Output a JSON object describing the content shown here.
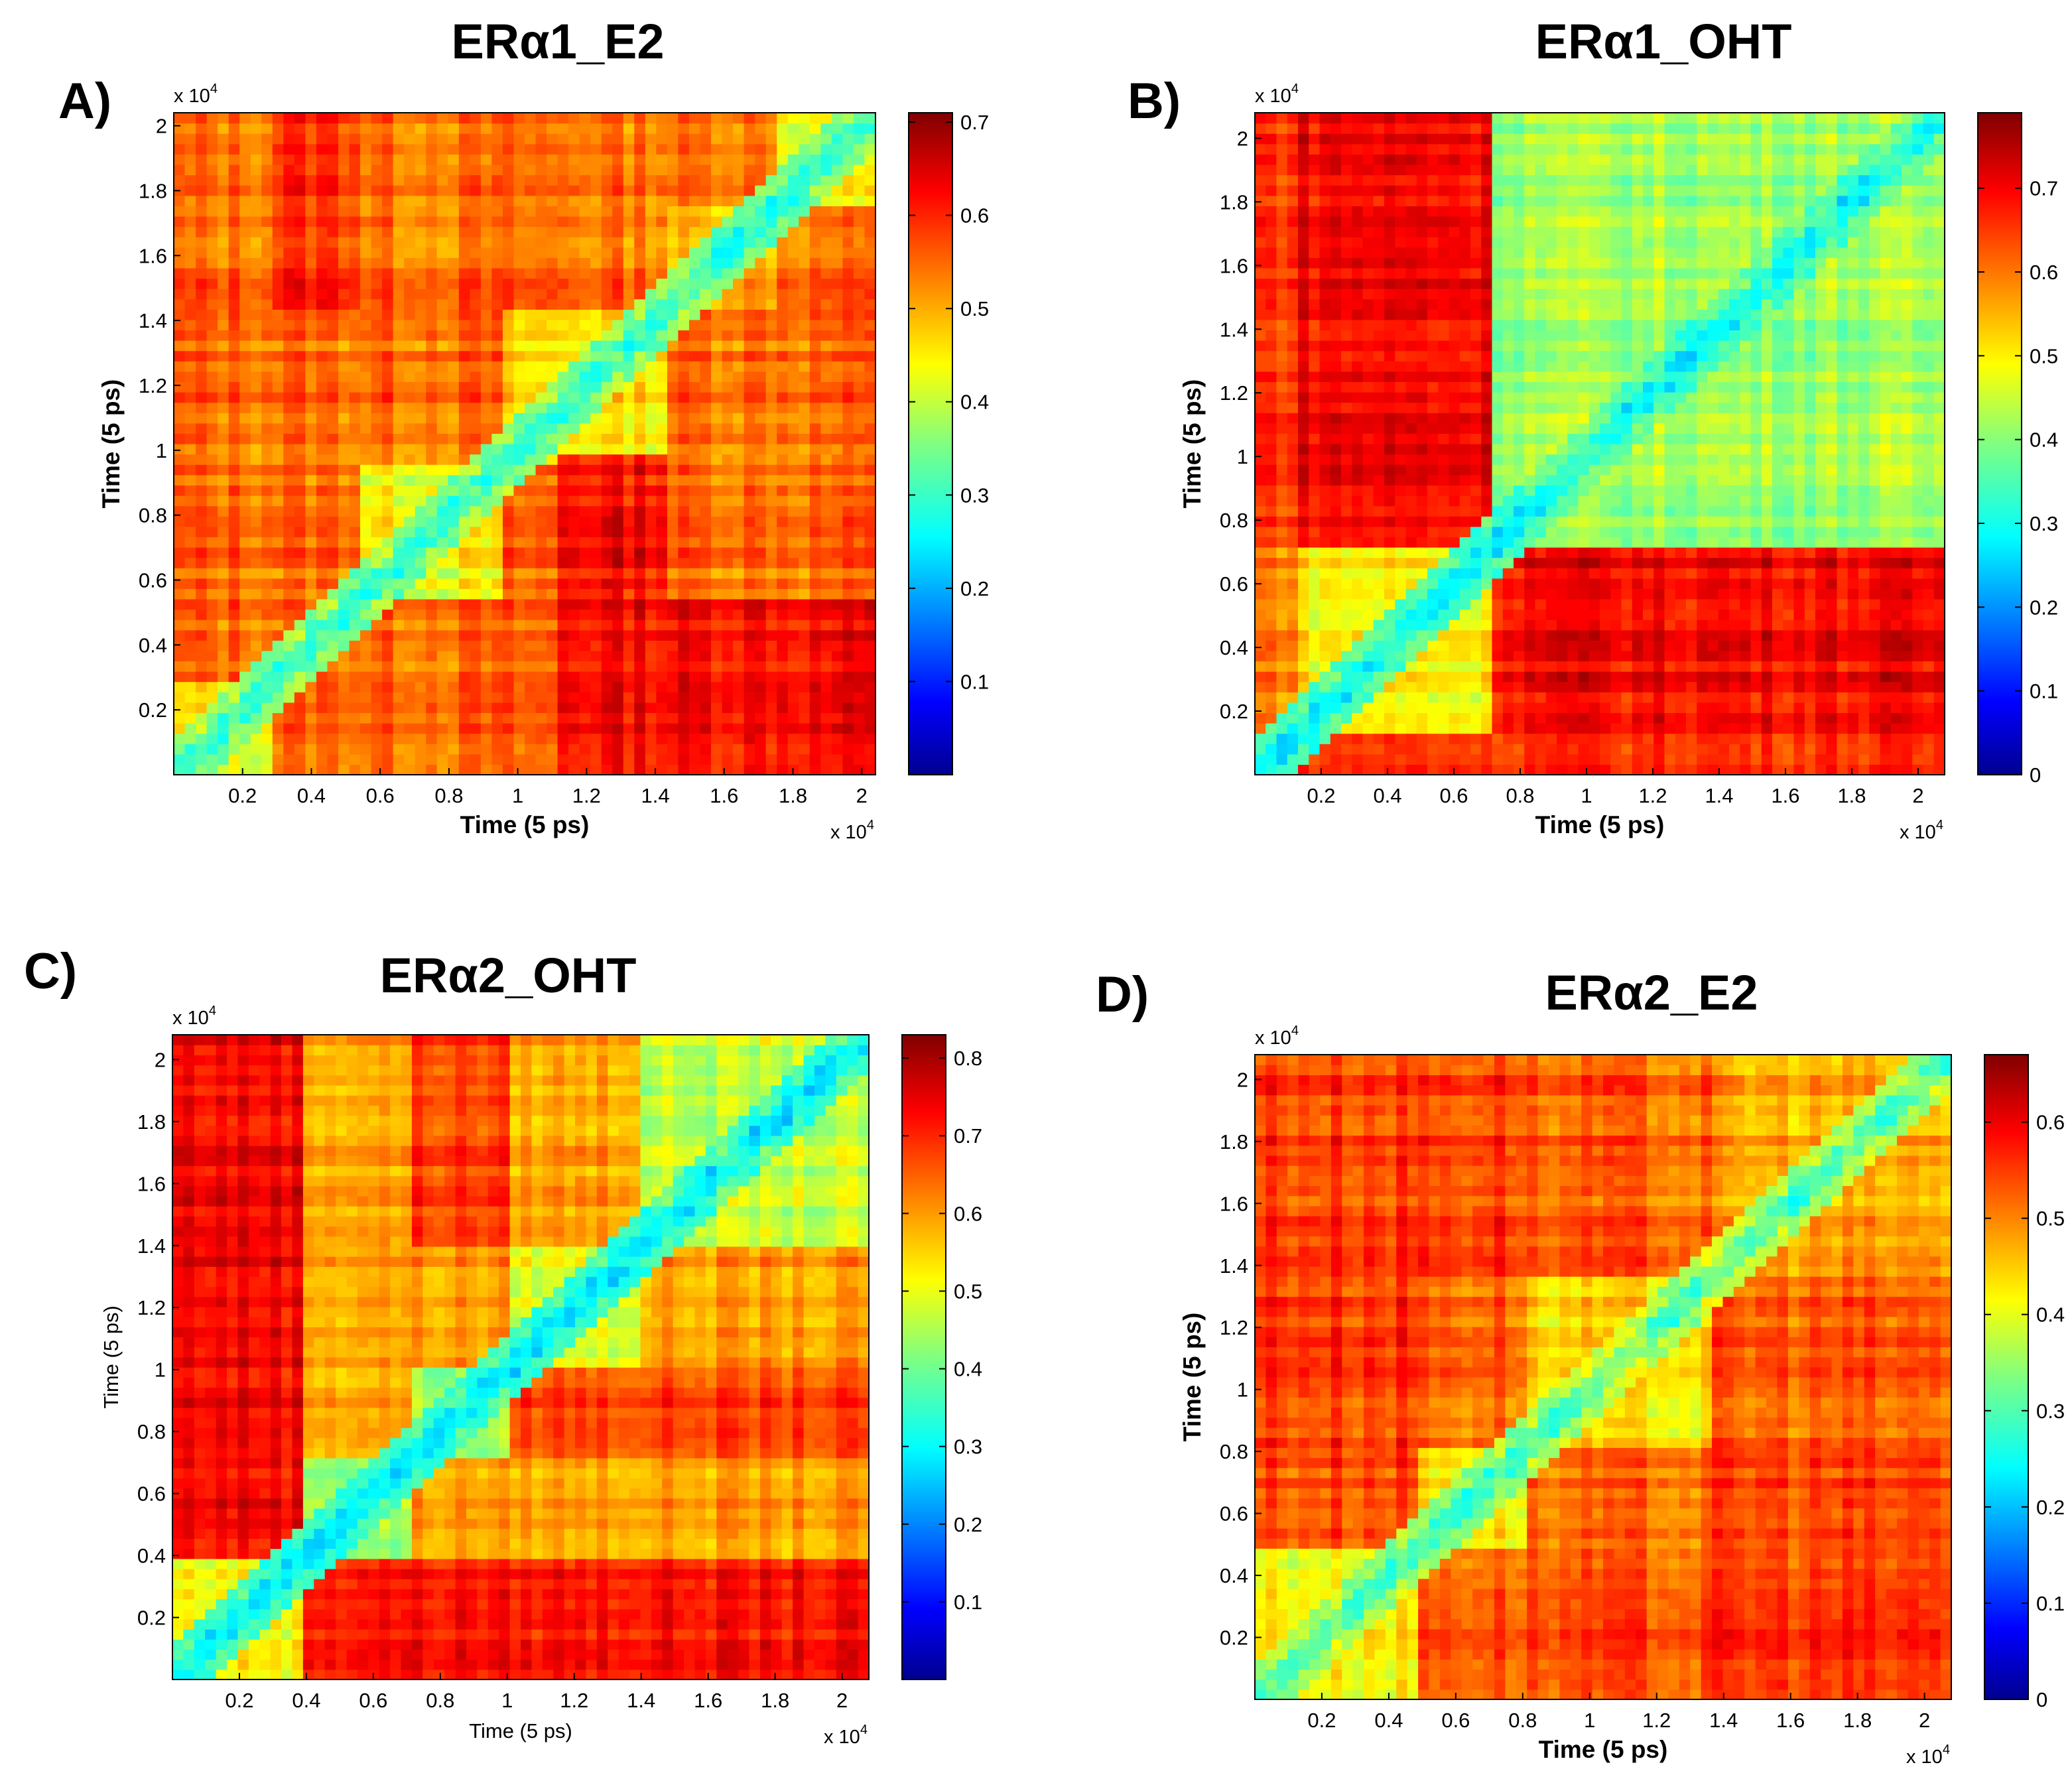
{
  "figure": {
    "colormap": "jet",
    "colormap_stops": [
      "#00008f",
      "#0000ff",
      "#0080ff",
      "#00ffff",
      "#80ff80",
      "#ffff00",
      "#ff8000",
      "#ff0000",
      "#800000"
    ]
  },
  "chart_data": [
    {
      "panel": "A",
      "letter": "A)",
      "type": "heatmap",
      "title": "ERα1_E2",
      "xlabel": "Time (5 ps)",
      "ylabel": "Time (5 ps)",
      "x_multiplier": "x 10",
      "y_multiplier": "x 10",
      "multiplier_exp": "4",
      "xlim": [
        0,
        2.04
      ],
      "ylim": [
        0,
        2.04
      ],
      "x_ticks": [
        "0.2",
        "0.4",
        "0.6",
        "0.8",
        "1",
        "1.2",
        "1.4",
        "1.6",
        "1.8",
        "2"
      ],
      "y_ticks": [
        "0.2",
        "0.4",
        "0.6",
        "0.8",
        "1",
        "1.2",
        "1.4",
        "1.6",
        "1.8",
        "2"
      ],
      "colorbar_range": [
        0,
        0.71
      ],
      "colorbar_ticks": [
        "0.1",
        "0.2",
        "0.3",
        "0.4",
        "0.5",
        "0.6",
        "0.7"
      ],
      "base_value": 0.55,
      "blocks": [
        [
          0,
          0.28,
          0.44
        ],
        [
          0.55,
          0.95,
          0.44
        ],
        [
          0.95,
          1.42,
          0.46
        ],
        [
          1.42,
          1.75,
          0.5
        ],
        [
          1.75,
          2.04,
          0.44
        ]
      ],
      "overrides": [
        [
          0.0,
          0.28,
          0.28,
          1.42,
          0.55
        ],
        [
          1.1,
          1.42,
          0.0,
          1.0,
          0.62
        ],
        [
          1.42,
          2.04,
          0.0,
          0.55,
          0.62
        ],
        [
          0.3,
          0.55,
          1.42,
          2.04,
          0.6
        ]
      ]
    },
    {
      "panel": "B",
      "letter": "B)",
      "type": "heatmap",
      "title": "ERα1_OHT",
      "xlabel": "Time (5 ps)",
      "ylabel": "Time (5 ps)",
      "x_multiplier": "x 10",
      "y_multiplier": "x 10",
      "multiplier_exp": "4",
      "xlim": [
        0,
        2.08
      ],
      "ylim": [
        0,
        2.08
      ],
      "x_ticks": [
        "0.2",
        "0.4",
        "0.6",
        "0.8",
        "1",
        "1.2",
        "1.4",
        "1.6",
        "1.8",
        "2"
      ],
      "y_ticks": [
        "0.2",
        "0.4",
        "0.6",
        "0.8",
        "1",
        "1.2",
        "1.4",
        "1.6",
        "1.8",
        "2"
      ],
      "colorbar_range": [
        0,
        0.79
      ],
      "colorbar_ticks": [
        "0",
        "0.1",
        "0.2",
        "0.3",
        "0.4",
        "0.5",
        "0.6",
        "0.7"
      ],
      "base_value": 0.68,
      "blocks": [
        [
          0,
          0.12,
          0.42
        ],
        [
          0.12,
          0.73,
          0.5
        ],
        [
          0.73,
          2.08,
          0.42
        ]
      ],
      "overrides": [
        [
          0.12,
          0.73,
          0.73,
          2.08,
          0.7
        ],
        [
          0.73,
          2.08,
          0.12,
          0.73,
          0.7
        ],
        [
          0.0,
          0.12,
          0.12,
          0.73,
          0.6
        ],
        [
          0.0,
          0.12,
          0.73,
          2.08,
          0.66
        ]
      ]
    },
    {
      "panel": "C",
      "letter": "C)",
      "type": "heatmap",
      "title": "ERα2_OHT",
      "xlabel": "Time (5 ps)",
      "ylabel": "Time (5 ps)",
      "x_multiplier": "x 10",
      "y_multiplier": "x 10",
      "multiplier_exp": "4",
      "xlim": [
        0,
        2.08
      ],
      "ylim": [
        0,
        2.08
      ],
      "x_ticks": [
        "0.2",
        "0.4",
        "0.6",
        "0.8",
        "1",
        "1.2",
        "1.4",
        "1.6",
        "1.8",
        "2"
      ],
      "y_ticks": [
        "0.2",
        "0.4",
        "0.6",
        "0.8",
        "1",
        "1.2",
        "1.4",
        "1.6",
        "1.8",
        "2"
      ],
      "colorbar_range": [
        0,
        0.83
      ],
      "colorbar_ticks": [
        "0.1",
        "0.2",
        "0.3",
        "0.4",
        "0.5",
        "0.6",
        "0.7",
        "0.8"
      ],
      "base_value": 0.6,
      "blocks": [
        [
          0,
          0.38,
          0.52
        ],
        [
          0.38,
          0.72,
          0.45
        ],
        [
          0.72,
          1.0,
          0.45
        ],
        [
          1.0,
          1.4,
          0.5
        ],
        [
          1.4,
          2.08,
          0.47
        ]
      ],
      "overrides": [
        [
          0.0,
          0.38,
          0.38,
          2.08,
          0.74
        ],
        [
          0.38,
          2.08,
          0.0,
          0.38,
          0.72
        ],
        [
          1.0,
          2.08,
          0.72,
          1.0,
          0.68
        ],
        [
          0.72,
          1.0,
          1.4,
          2.08,
          0.68
        ]
      ]
    },
    {
      "panel": "D",
      "letter": "D)",
      "type": "heatmap",
      "title": "ERα2_E2",
      "xlabel": "Time (5 ps)",
      "ylabel": "Time (5 ps)",
      "x_multiplier": "x 10",
      "y_multiplier": "x 10",
      "multiplier_exp": "4",
      "xlim": [
        0,
        2.08
      ],
      "ylim": [
        0,
        2.08
      ],
      "x_ticks": [
        "0.2",
        "0.4",
        "0.6",
        "0.8",
        "1",
        "1.2",
        "1.4",
        "1.6",
        "1.8",
        "2"
      ],
      "y_ticks": [
        "0.2",
        "0.4",
        "0.6",
        "0.8",
        "1",
        "1.2",
        "1.4",
        "1.6",
        "1.8",
        "2"
      ],
      "colorbar_range": [
        0,
        0.67
      ],
      "colorbar_ticks": [
        "0",
        "0.1",
        "0.2",
        "0.3",
        "0.4",
        "0.5",
        "0.6"
      ],
      "base_value": 0.52,
      "blocks": [
        [
          0,
          0.5,
          0.42
        ],
        [
          0.5,
          0.8,
          0.44
        ],
        [
          0.8,
          1.35,
          0.43
        ],
        [
          1.35,
          2.08,
          0.47
        ]
      ],
      "overrides": [
        [
          0.0,
          0.5,
          0.5,
          2.08,
          0.55
        ],
        [
          0.5,
          2.08,
          0.0,
          0.5,
          0.53
        ],
        [
          1.35,
          2.08,
          0.0,
          0.8,
          0.55
        ],
        [
          0.0,
          0.8,
          1.35,
          2.08,
          0.55
        ]
      ]
    }
  ]
}
